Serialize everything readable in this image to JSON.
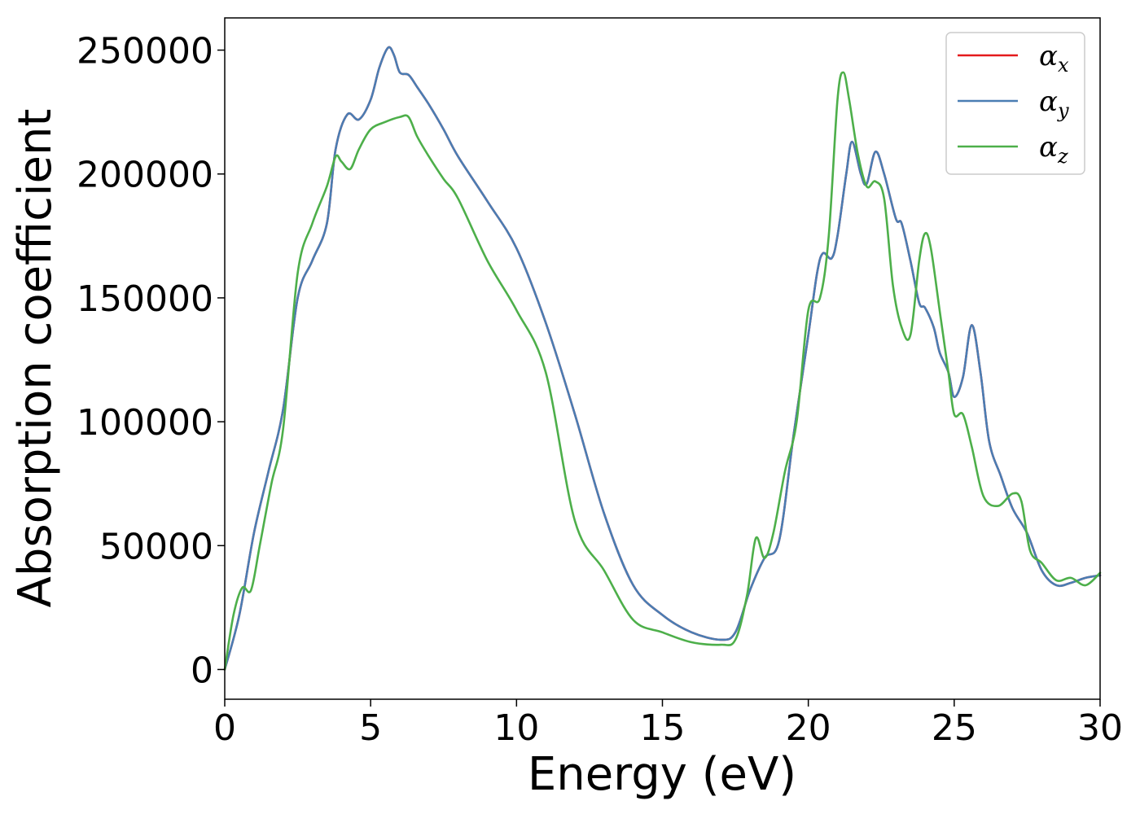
{
  "chart_data": {
    "type": "line",
    "title": "",
    "xlabel": "Energy (eV)",
    "ylabel": "Absorption coefficient",
    "xlim": [
      0,
      30
    ],
    "ylim": [
      -12000,
      263000
    ],
    "xticks": [
      0,
      5,
      10,
      15,
      20,
      25,
      30
    ],
    "yticks": [
      0,
      50000,
      100000,
      150000,
      200000,
      250000
    ],
    "grid": false,
    "legend": {
      "position": "top-right"
    },
    "series": [
      {
        "name": "α_x",
        "label_main": "α",
        "label_sub": "x",
        "color": "#e41a1c",
        "x": [
          0,
          0.5,
          1,
          1.5,
          2,
          2.5,
          3,
          3.5,
          3.8,
          4.2,
          4.6,
          5,
          5.3,
          5.6,
          5.8,
          6,
          6.3,
          6.6,
          7,
          7.5,
          8,
          9,
          10,
          11,
          12,
          13,
          14,
          15,
          16,
          17,
          17.5,
          18,
          18.5,
          19,
          19.5,
          20,
          20.3,
          20.5,
          20.8,
          21,
          21.3,
          21.5,
          21.8,
          22,
          22.3,
          22.6,
          23,
          23.2,
          23.5,
          23.8,
          24,
          24.3,
          24.5,
          24.8,
          25,
          25.3,
          25.6,
          25.9,
          26.2,
          26.6,
          27,
          27.5,
          28,
          28.5,
          29,
          29.5,
          30
        ],
        "y": [
          0,
          22000,
          55000,
          80000,
          105000,
          150000,
          165000,
          180000,
          210000,
          224000,
          222000,
          230000,
          243000,
          251000,
          248000,
          241000,
          240000,
          235000,
          228000,
          218000,
          207000,
          189000,
          170000,
          140000,
          103000,
          63000,
          34000,
          22000,
          15000,
          12000,
          15000,
          32000,
          45000,
          52000,
          95000,
          135000,
          160000,
          168000,
          166000,
          175000,
          200000,
          213000,
          200000,
          196000,
          209000,
          200000,
          182000,
          180000,
          165000,
          148000,
          146000,
          138000,
          128000,
          120000,
          110000,
          118000,
          139000,
          120000,
          92000,
          78000,
          65000,
          55000,
          40000,
          34000,
          35000,
          37000,
          38000
        ]
      },
      {
        "name": "α_y",
        "label_main": "α",
        "label_sub": "y",
        "color": "#4a7db3",
        "x": [
          0,
          0.5,
          1,
          1.5,
          2,
          2.5,
          3,
          3.5,
          3.8,
          4.2,
          4.6,
          5,
          5.3,
          5.6,
          5.8,
          6,
          6.3,
          6.6,
          7,
          7.5,
          8,
          9,
          10,
          11,
          12,
          13,
          14,
          15,
          16,
          17,
          17.5,
          18,
          18.5,
          19,
          19.5,
          20,
          20.3,
          20.5,
          20.8,
          21,
          21.3,
          21.5,
          21.8,
          22,
          22.3,
          22.6,
          23,
          23.2,
          23.5,
          23.8,
          24,
          24.3,
          24.5,
          24.8,
          25,
          25.3,
          25.6,
          25.9,
          26.2,
          26.6,
          27,
          27.5,
          28,
          28.5,
          29,
          29.5,
          30
        ],
        "y": [
          0,
          22000,
          55000,
          80000,
          105000,
          150000,
          165000,
          180000,
          210000,
          224000,
          222000,
          230000,
          243000,
          251000,
          248000,
          241000,
          240000,
          235000,
          228000,
          218000,
          207000,
          189000,
          170000,
          140000,
          103000,
          63000,
          34000,
          22000,
          15000,
          12000,
          15000,
          32000,
          45000,
          52000,
          95000,
          135000,
          160000,
          168000,
          166000,
          175000,
          200000,
          213000,
          200000,
          196000,
          209000,
          200000,
          182000,
          180000,
          165000,
          148000,
          146000,
          138000,
          128000,
          120000,
          110000,
          118000,
          139000,
          120000,
          92000,
          78000,
          65000,
          55000,
          40000,
          34000,
          35000,
          37000,
          38000
        ]
      },
      {
        "name": "α_z",
        "label_main": "α",
        "label_sub": "z",
        "color": "#4daf4a",
        "x": [
          0,
          0.3,
          0.6,
          0.9,
          1.2,
          1.6,
          2,
          2.5,
          3,
          3.5,
          3.8,
          4,
          4.3,
          4.6,
          5,
          5.5,
          6,
          6.3,
          6.6,
          7,
          7.5,
          8,
          9,
          10,
          11,
          12,
          13,
          14,
          15,
          16,
          17,
          17.5,
          17.9,
          18.2,
          18.5,
          18.8,
          19.2,
          19.6,
          20,
          20.4,
          20.7,
          21,
          21.2,
          21.4,
          21.7,
          22,
          22.3,
          22.6,
          22.9,
          23.2,
          23.5,
          23.8,
          24,
          24.2,
          24.5,
          24.8,
          25,
          25.3,
          25.6,
          26,
          26.5,
          27,
          27.3,
          27.6,
          28,
          28.5,
          29,
          29.5,
          30
        ],
        "y": [
          0,
          22000,
          33000,
          32000,
          50000,
          75000,
          97000,
          160000,
          180000,
          195000,
          207000,
          205000,
          202000,
          210000,
          218000,
          221000,
          223000,
          223000,
          215000,
          207000,
          198000,
          190000,
          165000,
          145000,
          120000,
          60000,
          40000,
          20000,
          15000,
          11000,
          10000,
          12000,
          30000,
          53000,
          45000,
          55000,
          80000,
          100000,
          145000,
          150000,
          175000,
          230000,
          241000,
          230000,
          208000,
          195000,
          197000,
          190000,
          155000,
          138000,
          135000,
          165000,
          176000,
          170000,
          145000,
          120000,
          103000,
          103000,
          90000,
          70000,
          66000,
          71000,
          68000,
          48000,
          43000,
          36000,
          37000,
          34000,
          39000
        ]
      }
    ]
  }
}
